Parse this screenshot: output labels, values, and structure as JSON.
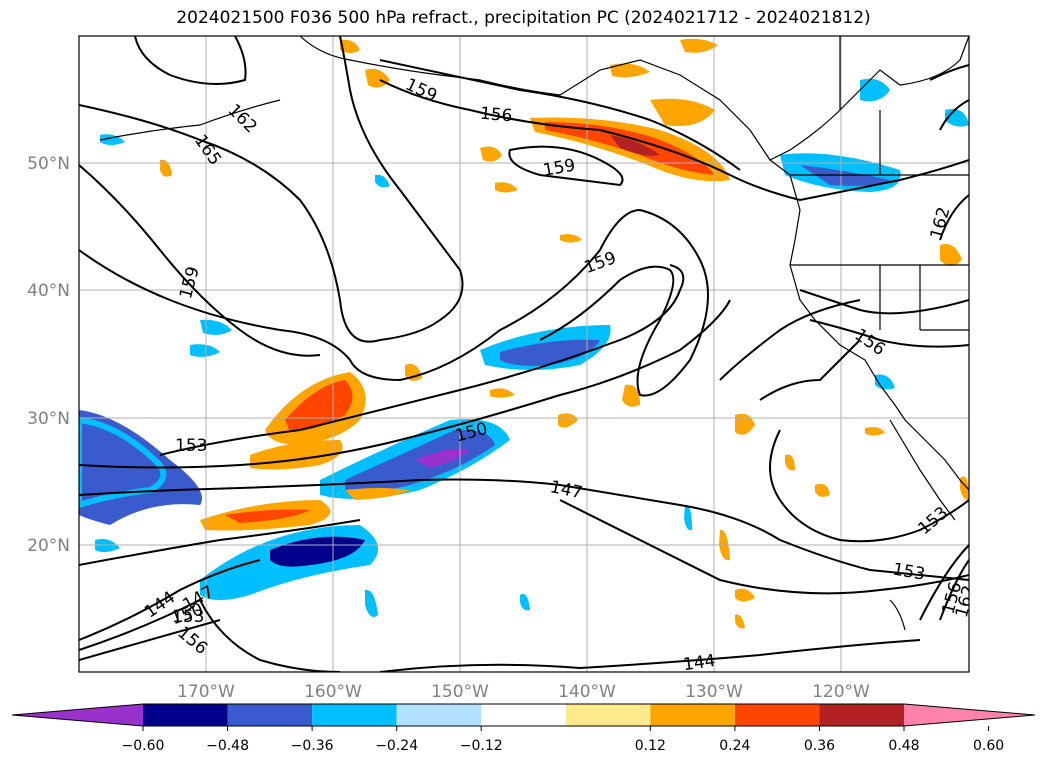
{
  "title": "2024021500 F036 500 hPa refract., precipitation PC (2024021712 - 2024021812)",
  "lat_labels": [
    "50°N",
    "40°N",
    "30°N",
    "20°N"
  ],
  "lon_labels": [
    "170°W",
    "160°W",
    "150°W",
    "140°W",
    "130°W",
    "120°W"
  ],
  "contour_labels": [
    "159",
    "156",
    "162",
    "165",
    "159",
    "159",
    "153",
    "150",
    "147",
    "156",
    "153",
    "153",
    "144",
    "147",
    "150",
    "153",
    "156",
    "144",
    "162",
    "156",
    "162"
  ],
  "colorbar": {
    "ticks": [
      "−0.60",
      "−0.48",
      "−0.36",
      "−0.24",
      "−0.12",
      "0.12",
      "0.24",
      "0.36",
      "0.48",
      "0.60"
    ],
    "colors": [
      "#9932cc",
      "#00008b",
      "#3a5bcd",
      "#00bfff",
      "#b0e2ff",
      "#ffffff",
      "#ffe98a",
      "#ffa500",
      "#ff4500",
      "#b22222",
      "#ff82ab"
    ]
  }
}
